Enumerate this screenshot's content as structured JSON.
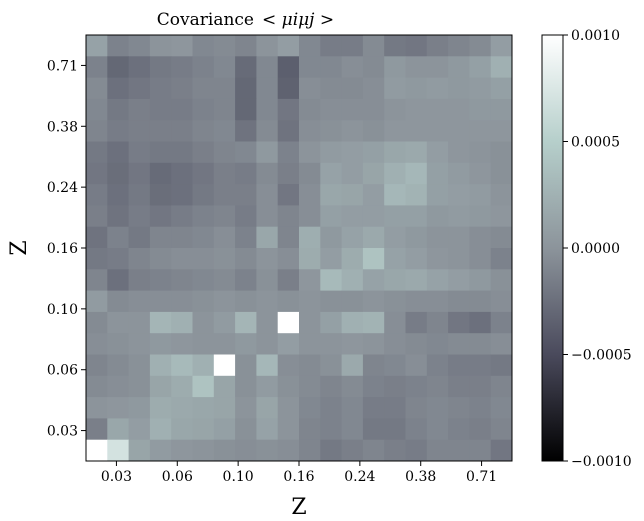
{
  "chart_data": {
    "type": "heatmap",
    "title": "Covariance",
    "title_math": "< μiμj >",
    "xlabel": "Z",
    "ylabel": "Z",
    "x_tick_labels": [
      "0.03",
      "0.06",
      "0.10",
      "0.16",
      "0.24",
      "0.38",
      "0.71"
    ],
    "y_tick_labels": [
      "0.71",
      "0.38",
      "0.24",
      "0.16",
      "0.10",
      "0.06",
      "0.03"
    ],
    "colorbar": {
      "min": -0.001,
      "max": 0.001,
      "tick_labels": [
        "0.0010",
        "0.0005",
        "0.0000",
        "−0.0005",
        "−0.0010"
      ],
      "tick_values": [
        0.001,
        0.0005,
        0.0,
        -0.0005,
        -0.001
      ],
      "colormap": [
        "#000000",
        "#4a4a5c",
        "#8c949b",
        "#b6cfcb",
        "#ffffff"
      ]
    },
    "grid": false,
    "rows": 20,
    "cols": 20,
    "orientation": "row 0 is the top row (highest Z); column 0 is the leftmost (lowest Z)",
    "values": [
      [
        0.00012,
        -0.00012,
        -8e-05,
        0.0,
        2e-05,
        -8e-05,
        -6e-05,
        -0.0001,
        0.0,
        8e-05,
        -8e-05,
        -0.00016,
        -0.00016,
        -6e-05,
        -0.00018,
        -0.0002,
        -0.00014,
        -0.0001,
        -6e-05,
        8e-05
      ],
      [
        -0.00012,
        -0.0003,
        -0.00024,
        -0.00018,
        -0.00016,
        -0.00012,
        -8e-05,
        -0.00028,
        -8e-05,
        -0.00036,
        -8e-05,
        -8e-05,
        -4e-05,
        -6e-05,
        4e-05,
        0.0,
        0.0,
        4e-05,
        0.0001,
        0.00024
      ],
      [
        -6e-05,
        -0.00024,
        -0.0002,
        -0.00016,
        -0.00014,
        -0.0001,
        -0.0001,
        -0.0003,
        -8e-05,
        -0.00034,
        -4e-05,
        -6e-05,
        -6e-05,
        -4e-05,
        6e-05,
        4e-05,
        6e-05,
        4e-05,
        6e-05,
        0.0001
      ],
      [
        -8e-05,
        -0.00018,
        -0.00014,
        -0.00016,
        -0.00016,
        -0.00012,
        -0.0001,
        -0.0003,
        -8e-05,
        -0.0002,
        -6e-05,
        -4e-05,
        -4e-05,
        -4e-05,
        0.0,
        2e-05,
        2e-05,
        2e-05,
        4e-05,
        4e-05
      ],
      [
        -0.0001,
        -0.00016,
        -0.00014,
        -0.00014,
        -0.00014,
        -0.0001,
        -8e-05,
        -0.00022,
        -6e-05,
        -0.00022,
        -4e-05,
        -2e-05,
        0.0,
        -2e-05,
        2e-05,
        2e-05,
        2e-05,
        2e-05,
        2e-05,
        2e-05
      ],
      [
        -0.00018,
        -0.00024,
        -0.00016,
        -0.00018,
        -0.00018,
        -0.00014,
        -0.0001,
        -8e-05,
        4e-05,
        -0.00012,
        0.0,
        6e-05,
        8e-05,
        0.0001,
        0.00016,
        0.00018,
        8e-05,
        2e-05,
        0.0,
        -2e-05
      ],
      [
        -0.0002,
        -0.00026,
        -0.0002,
        -0.00028,
        -0.00024,
        -0.0002,
        -0.00014,
        -0.00016,
        -6e-05,
        -0.00014,
        -6e-05,
        0.00012,
        8e-05,
        0.00014,
        0.00024,
        0.0003,
        0.0001,
        6e-05,
        2e-05,
        -2e-05
      ],
      [
        -0.00016,
        -0.00024,
        -0.00018,
        -0.00026,
        -0.00024,
        -0.00018,
        -0.00014,
        -0.00014,
        -4e-05,
        -0.0002,
        -4e-05,
        0.00016,
        0.00014,
        8e-05,
        0.0003,
        0.00026,
        0.0001,
        8e-05,
        6e-05,
        0.0
      ],
      [
        -0.00014,
        -0.00022,
        -0.00016,
        -0.0002,
        -0.00016,
        -0.00012,
        -0.0001,
        -0.00016,
        -4e-05,
        -0.0001,
        -4e-05,
        0.0001,
        8e-05,
        8e-05,
        0.0001,
        0.0001,
        4e-05,
        6e-05,
        4e-05,
        2e-05
      ],
      [
        -0.00022,
        -0.00012,
        -0.00018,
        -0.0001,
        -0.0001,
        -8e-05,
        -4e-05,
        -0.00012,
        0.00016,
        -0.0001,
        0.00022,
        4e-05,
        0.00012,
        0.00018,
        8e-05,
        4e-05,
        0.0,
        0.0,
        -4e-05,
        -6e-05
      ],
      [
        -0.00018,
        -0.00016,
        -0.0001,
        -6e-05,
        -4e-05,
        -4e-05,
        -2e-05,
        -6e-05,
        0.0,
        -4e-05,
        0.0002,
        8e-05,
        0.0002,
        0.0004,
        0.00012,
        8e-05,
        2e-05,
        0.0,
        -4e-05,
        -0.00012
      ],
      [
        -0.0001,
        -0.00024,
        -0.00014,
        -0.00012,
        -0.0001,
        -8e-05,
        -6e-05,
        -0.00012,
        -2e-05,
        -0.00014,
        2e-05,
        0.00032,
        0.00024,
        0.00012,
        0.00016,
        0.00018,
        0.00012,
        8e-05,
        4e-05,
        -2e-05
      ],
      [
        6e-05,
        -6e-05,
        -4e-05,
        -4e-05,
        -4e-05,
        -2e-05,
        0.0,
        -2e-05,
        0.0,
        -2e-05,
        0.0,
        -2e-05,
        -2e-05,
        0.0,
        -2e-05,
        -4e-05,
        -4e-05,
        -6e-05,
        -6e-05,
        -4e-05
      ],
      [
        -6e-05,
        0.0,
        0.0,
        0.00028,
        0.00024,
        0.0,
        6e-05,
        0.00028,
        0.0,
        0.001,
        0.0,
        0.0001,
        0.00024,
        0.00026,
        -4e-05,
        -0.00016,
        -0.0001,
        -0.0002,
        -0.00024,
        -0.00012
      ],
      [
        -4e-05,
        -2e-05,
        0.0,
        4e-05,
        2e-05,
        0.0,
        0.0,
        4e-05,
        0.0,
        8e-05,
        0.0,
        0.0,
        2e-05,
        0.0,
        -4e-05,
        -6e-05,
        -8e-05,
        -6e-05,
        -6e-05,
        -4e-05
      ],
      [
        -0.0001,
        -6e-05,
        -2e-05,
        0.00024,
        0.00032,
        0.00024,
        0.001,
        -2e-05,
        0.0003,
        -4e-05,
        -6e-05,
        -2e-05,
        0.00018,
        -0.0001,
        -8e-05,
        -4e-05,
        -0.00012,
        -0.00016,
        -0.00016,
        -0.00018
      ],
      [
        -6e-05,
        -4e-05,
        -2e-05,
        0.00014,
        0.0002,
        0.0004,
        0.00014,
        -2e-05,
        6e-05,
        -2e-05,
        -6e-05,
        -0.0001,
        -6e-05,
        -0.00012,
        -0.00014,
        -0.00012,
        -0.0001,
        -0.00014,
        -0.00014,
        -0.0001
      ],
      [
        0.0,
        2e-05,
        4e-05,
        0.0002,
        0.00018,
        0.00016,
        0.00014,
        0.0,
        0.00014,
        0.0,
        -8e-05,
        -0.00012,
        -8e-05,
        -0.00016,
        -0.00016,
        -0.0001,
        -8e-05,
        -0.0001,
        -0.00012,
        -8e-05
      ],
      [
        -0.00014,
        0.00016,
        8e-05,
        0.00024,
        0.00016,
        0.00014,
        0.0001,
        -2e-05,
        0.00012,
        0.0,
        -0.0001,
        -0.00012,
        -8e-05,
        -0.00018,
        -0.00018,
        -0.00012,
        -8e-05,
        -0.00012,
        -0.00014,
        -0.0001
      ],
      [
        0.001,
        0.0007,
        0.00014,
        6e-05,
        2e-05,
        0.0,
        -2e-05,
        -4e-05,
        -2e-05,
        -4e-05,
        -0.0001,
        -0.00018,
        -0.00014,
        -0.0001,
        -0.00014,
        -0.00016,
        -0.0001,
        -0.0001,
        -0.0001,
        -0.0002
      ]
    ]
  }
}
